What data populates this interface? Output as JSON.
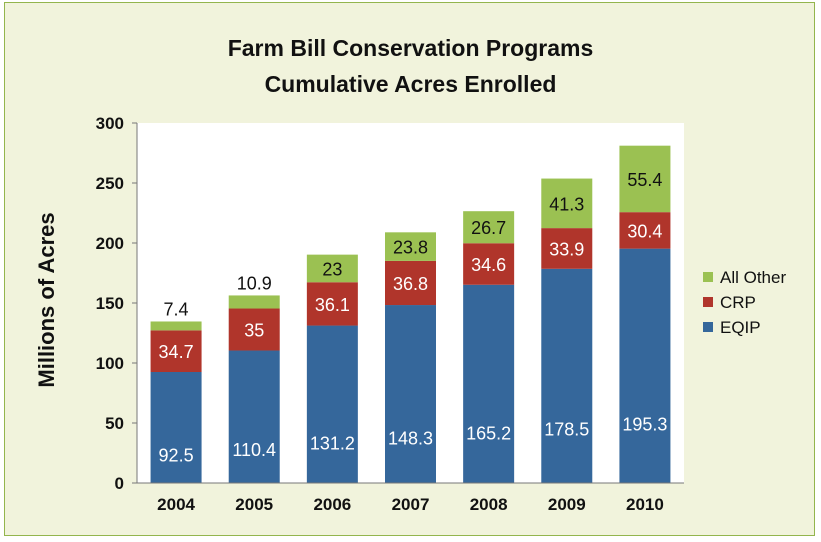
{
  "chart_data": {
    "type": "bar",
    "stacked": true,
    "title": "Farm Bill Conservation Programs",
    "subtitle": "Cumulative Acres Enrolled",
    "xlabel": "",
    "ylabel": "Millions of Acres",
    "ylim": [
      0,
      300
    ],
    "yticks": [
      0,
      50,
      100,
      150,
      200,
      250,
      300
    ],
    "grid": false,
    "legend_position": "right",
    "categories": [
      "2004",
      "2005",
      "2006",
      "2007",
      "2008",
      "2009",
      "2010"
    ],
    "series": [
      {
        "name": "EQIP",
        "color": "#35679b",
        "label_color": "#ffffff",
        "values": [
          92.5,
          110.4,
          131.2,
          148.3,
          165.2,
          178.5,
          195.3
        ]
      },
      {
        "name": "CRP",
        "color": "#b0352b",
        "label_color": "#ffffff",
        "values": [
          34.7,
          35,
          36.1,
          36.8,
          34.6,
          33.9,
          30.4
        ]
      },
      {
        "name": "All Other",
        "color": "#9bc152",
        "label_color": "#111111",
        "values": [
          7.4,
          10.9,
          23,
          23.8,
          26.7,
          41.3,
          55.4
        ]
      }
    ],
    "legend_order": [
      "All Other",
      "CRP",
      "EQIP"
    ]
  },
  "colors": {
    "frame_background": "#f1f3dc",
    "frame_border": "#93b54d",
    "plot_background": "#ffffff"
  }
}
